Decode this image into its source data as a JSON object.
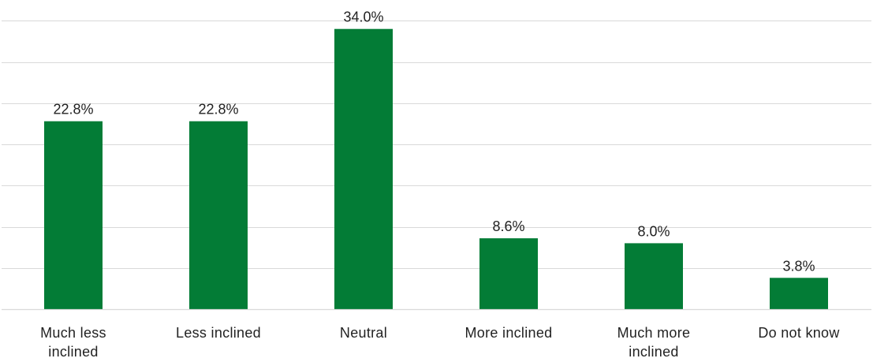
{
  "chart_data": {
    "type": "bar",
    "categories": [
      [
        "Much less",
        "inclined"
      ],
      [
        "Less inclined"
      ],
      [
        "Neutral"
      ],
      [
        "More inclined"
      ],
      [
        "Much more",
        "inclined"
      ],
      [
        "Do not know"
      ]
    ],
    "values": [
      22.8,
      22.8,
      34.0,
      8.6,
      8.0,
      3.8
    ],
    "data_labels": [
      "22.8%",
      "22.8%",
      "34.0%",
      "8.6%",
      "8.0%",
      "3.8%"
    ],
    "ylim": [
      0,
      35
    ],
    "gridline_step": 5,
    "grid": true,
    "legend": false,
    "colors": {
      "bar": "#037c36",
      "grid": "#d9d9d9",
      "text": "#222222"
    }
  }
}
